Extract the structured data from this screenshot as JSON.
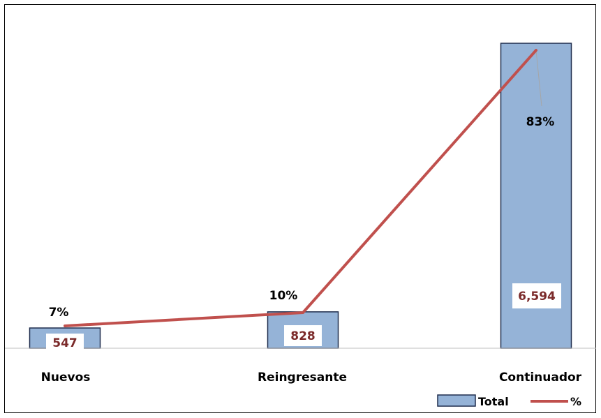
{
  "chart_data": {
    "type": "bar",
    "categories": [
      "Nuevos",
      "Reingresante",
      "Continuador"
    ],
    "series": [
      {
        "name": "Total",
        "type": "bar",
        "values": [
          547,
          828,
          6594
        ],
        "labels": [
          "547",
          "828",
          "6,594"
        ]
      },
      {
        "name": "%",
        "type": "line",
        "values": [
          7,
          10,
          83
        ],
        "labels": [
          "7%",
          "10%",
          "83%"
        ]
      }
    ],
    "ylim_total": [
      0,
      7500
    ],
    "ylim_percent": [
      0,
      90
    ],
    "grid": false,
    "legend_position": "bottom-right"
  },
  "colors": {
    "bar_fill": "#95b3d7",
    "bar_stroke": "#1f2d4d",
    "line": "#c0504d",
    "value_label": "#7b2a2a"
  }
}
